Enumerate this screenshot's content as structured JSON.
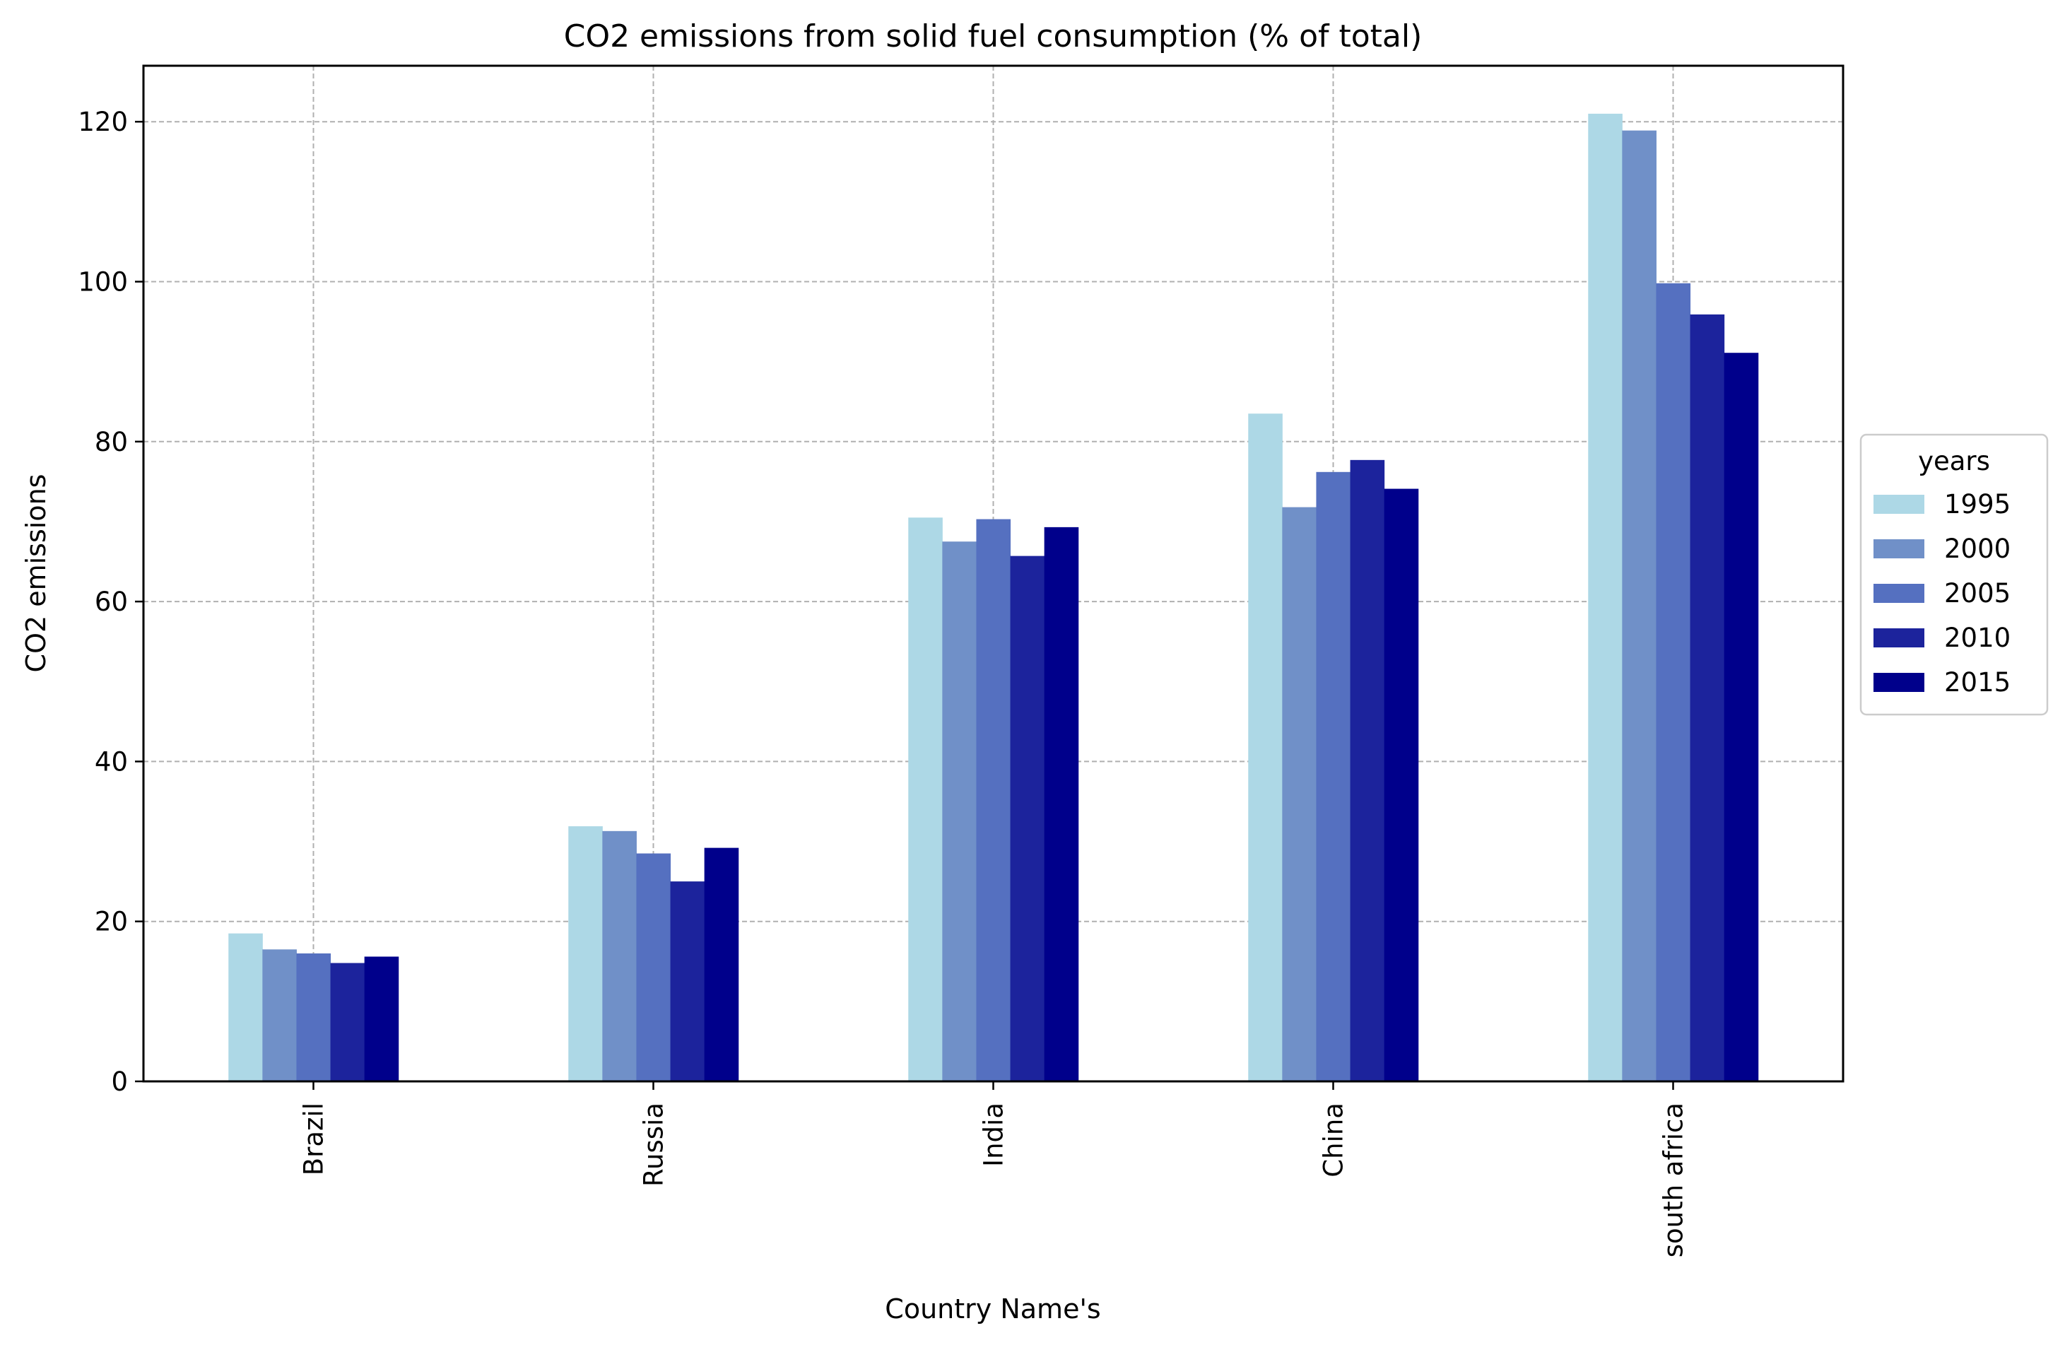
{
  "chart_data": {
    "type": "bar",
    "title": "CO2 emissions from solid fuel consumption (% of total)",
    "xlabel": "Country Name's",
    "ylabel": "CO2 emissions",
    "categories": [
      "Brazil",
      "Russia",
      "India",
      "China",
      "south africa"
    ],
    "series": [
      {
        "name": "1995",
        "color": "#add8e6",
        "values": [
          18.5,
          31.9,
          70.5,
          83.5,
          121.0
        ]
      },
      {
        "name": "2000",
        "color": "#7090c8",
        "values": [
          16.5,
          31.3,
          67.5,
          71.8,
          118.9
        ]
      },
      {
        "name": "2005",
        "color": "#5570c0",
        "values": [
          16.0,
          28.5,
          70.3,
          76.2,
          99.8
        ]
      },
      {
        "name": "2010",
        "color": "#1c239c",
        "values": [
          14.8,
          25.0,
          65.7,
          77.7,
          95.9
        ]
      },
      {
        "name": "2015",
        "color": "#00008b",
        "values": [
          15.6,
          29.2,
          69.3,
          74.1,
          91.1
        ]
      }
    ],
    "ylim": [
      0,
      127
    ],
    "yticks": [
      0,
      20,
      40,
      60,
      80,
      100,
      120
    ],
    "grid": true,
    "legend": {
      "title": "years",
      "position": "right"
    }
  }
}
